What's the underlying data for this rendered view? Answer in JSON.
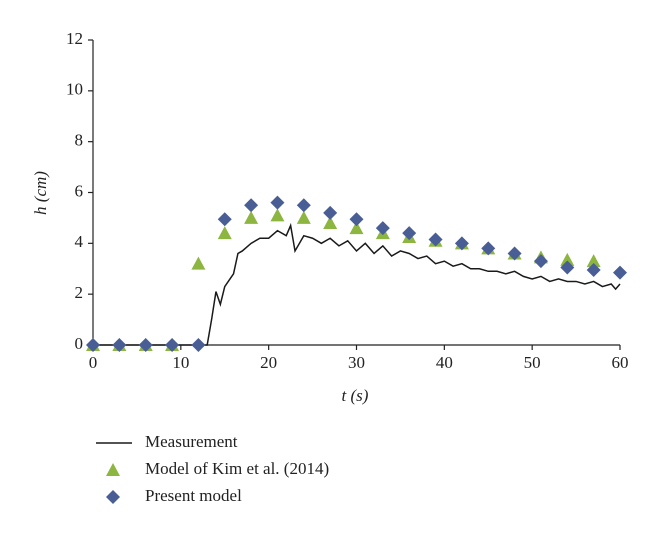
{
  "chart_data": {
    "type": "line",
    "xlabel": "t (s)",
    "ylabel": "h (cm)",
    "xlim": [
      0,
      60
    ],
    "xticks": [
      0,
      10,
      20,
      30,
      40,
      50,
      60
    ],
    "ylim": [
      0,
      12
    ],
    "yticks": [
      0,
      2,
      4,
      6,
      8,
      10,
      12
    ],
    "series": [
      {
        "name": "Measurement",
        "color": "#1a1a1a",
        "marker": "line",
        "x": [
          0,
          13,
          13.5,
          14,
          14.5,
          15,
          16,
          16.5,
          17,
          18,
          19,
          20,
          21,
          22,
          22.5,
          23,
          24,
          25,
          26,
          27,
          28,
          29,
          30,
          31,
          32,
          33,
          34,
          35,
          36,
          37,
          38,
          39,
          40,
          41,
          42,
          43,
          44,
          45,
          46,
          47,
          48,
          49,
          50,
          51,
          52,
          53,
          54,
          55,
          56,
          57,
          58,
          59,
          59.5,
          60
        ],
        "values": [
          0,
          0,
          1,
          2.1,
          1.6,
          2.3,
          2.8,
          3.6,
          3.7,
          4.0,
          4.2,
          4.2,
          4.5,
          4.3,
          4.7,
          3.7,
          4.3,
          4.2,
          4.0,
          4.2,
          3.9,
          4.1,
          3.7,
          4.0,
          3.6,
          3.9,
          3.5,
          3.7,
          3.6,
          3.4,
          3.5,
          3.2,
          3.3,
          3.1,
          3.2,
          3.0,
          3.0,
          2.9,
          2.9,
          2.8,
          2.9,
          2.7,
          2.6,
          2.7,
          2.5,
          2.6,
          2.5,
          2.5,
          2.4,
          2.5,
          2.3,
          2.4,
          2.2,
          2.4
        ]
      },
      {
        "name": "Model of Kim et al. (2014)",
        "color": "#8db641",
        "marker": "triangle",
        "x": [
          0,
          3,
          6,
          9,
          12,
          15,
          18,
          21,
          24,
          27,
          30,
          33,
          36,
          39,
          42,
          45,
          48,
          51,
          54,
          57
        ],
        "values": [
          0,
          0,
          0,
          0,
          3.2,
          4.4,
          5.0,
          5.1,
          5.0,
          4.8,
          4.6,
          4.4,
          4.25,
          4.1,
          4.0,
          3.8,
          3.6,
          3.45,
          3.35,
          3.3
        ]
      },
      {
        "name": "Present model",
        "color": "#4a5e96",
        "marker": "diamond",
        "x": [
          0,
          3,
          6,
          9,
          12,
          15,
          18,
          21,
          24,
          27,
          30,
          33,
          36,
          39,
          42,
          45,
          48,
          51,
          54,
          57,
          60
        ],
        "values": [
          0,
          0,
          0,
          0,
          0,
          4.95,
          5.5,
          5.6,
          5.5,
          5.2,
          4.95,
          4.6,
          4.4,
          4.15,
          4.0,
          3.8,
          3.6,
          3.3,
          3.05,
          2.95,
          2.85
        ]
      }
    ]
  }
}
